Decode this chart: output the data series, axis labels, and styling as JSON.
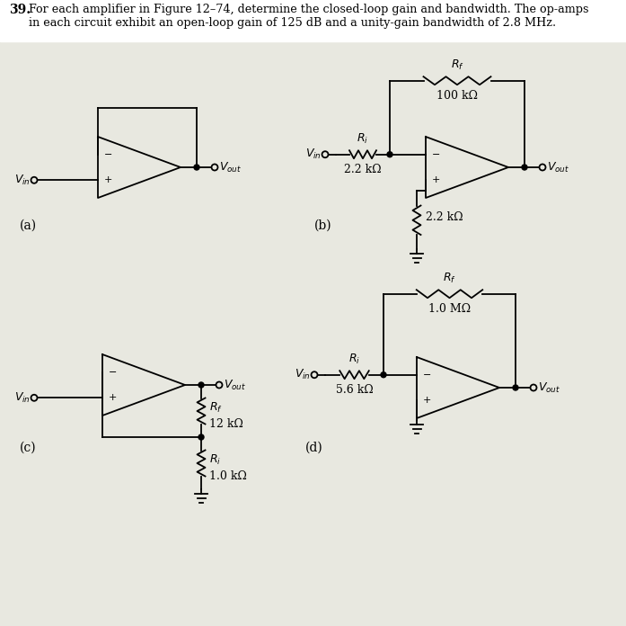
{
  "bg_color": "#e8e8e0",
  "line_color": "black",
  "lw": 1.3,
  "header_num": "39.",
  "header_line1": "For each amplifier in Figure 12–74, determine the closed-loop gain and bandwidth. The op-amps",
  "header_line2": "in each circuit exhibit an open-loop gain of 125 dB and a unity-gain bandwidth of 2.8 MHz.",
  "label_a": "(a)",
  "label_b": "(b)",
  "label_c": "(c)",
  "label_d": "(d)",
  "b_ri_label": "R_i",
  "b_ri_val": "2.2 kΩ",
  "b_rf_label": "R_f",
  "b_rf_val": "100 kΩ",
  "b_rp_val": "2.2 kΩ",
  "c_rf_label": "R_f",
  "c_rf_val": "12 kΩ",
  "c_ri_label": "R_i",
  "c_ri_val": "1.0 kΩ",
  "d_ri_label": "R_i",
  "d_ri_val": "5.6 kΩ",
  "d_rf_label": "R_f",
  "d_rf_val": "1.0 MΩ"
}
